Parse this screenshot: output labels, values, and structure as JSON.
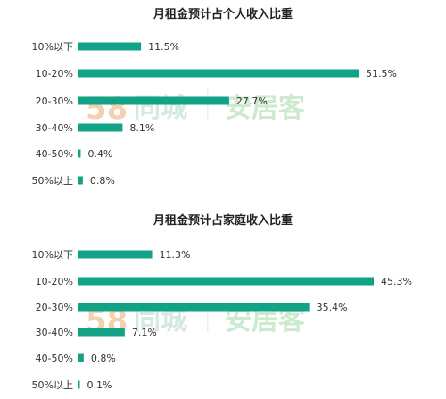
{
  "chart_data": [
    {
      "type": "bar",
      "orientation": "horizontal",
      "title": "月租金预计占个人收入比重",
      "categories": [
        "10%以下",
        "10-20%",
        "20-30%",
        "30-40%",
        "40-50%",
        "50%以上"
      ],
      "values": [
        11.5,
        51.5,
        27.7,
        8.1,
        0.4,
        0.8
      ],
      "value_labels": [
        "11.5%",
        "51.5%",
        "27.7%",
        "8.1%",
        "0.4%",
        "0.8%"
      ],
      "unit": "%",
      "xlim": [
        0,
        51.5
      ],
      "grid": false,
      "color": "#12a386"
    },
    {
      "type": "bar",
      "orientation": "horizontal",
      "title": "月租金预计占家庭收入比重",
      "categories": [
        "10%以下",
        "10-20%",
        "20-30%",
        "30-40%",
        "40-50%",
        "50%以上"
      ],
      "values": [
        11.3,
        45.3,
        35.4,
        7.1,
        0.8,
        0.1
      ],
      "value_labels": [
        "11.3%",
        "45.3%",
        "35.4%",
        "7.1%",
        "0.8%",
        "0.1%"
      ],
      "unit": "%",
      "xlim": [
        0,
        45.3
      ],
      "grid": false,
      "color": "#12a386"
    }
  ],
  "watermark": {
    "number": "58",
    "brand": "同城",
    "brand2": "安居客",
    "colors": {
      "num1": "#f2c9a3",
      "num2": "#bfe3d6",
      "text": "#cfe6dc",
      "brand2": "#c4e7c6"
    }
  }
}
